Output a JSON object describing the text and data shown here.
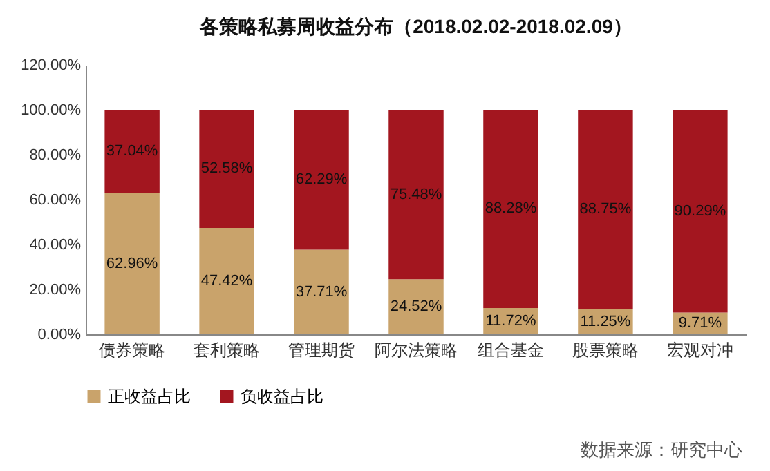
{
  "chart_data": {
    "type": "bar",
    "title": "各策略私募周收益分布（2018.02.02-2018.02.09）",
    "stacked": true,
    "categories": [
      "债券策略",
      "套利策略",
      "管理期货",
      "阿尔法策略",
      "组合基金",
      "股票策略",
      "宏观对冲"
    ],
    "series": [
      {
        "name": "正收益占比",
        "color": "#c9a36b",
        "values": [
          62.96,
          47.42,
          37.71,
          24.52,
          11.72,
          11.25,
          9.71
        ],
        "value_labels": [
          "62.96%",
          "47.42%",
          "37.71%",
          "24.52%",
          "11.72%",
          "11.25%",
          "9.71%"
        ]
      },
      {
        "name": "负收益占比",
        "color": "#a3161f",
        "values": [
          37.04,
          52.58,
          62.29,
          75.48,
          88.28,
          88.75,
          90.29
        ],
        "value_labels": [
          "37.04%",
          "52.58%",
          "62.29%",
          "75.48%",
          "88.28%",
          "88.75%",
          "90.29%"
        ]
      }
    ],
    "ylim": [
      0,
      120
    ],
    "yticks": [
      {
        "value": 0,
        "label": "0.00%"
      },
      {
        "value": 20,
        "label": "20.00%"
      },
      {
        "value": 40,
        "label": "40.00%"
      },
      {
        "value": 60,
        "label": "60.00%"
      },
      {
        "value": 80,
        "label": "80.00%"
      },
      {
        "value": 100,
        "label": "100.00%"
      },
      {
        "value": 120,
        "label": "120.00%"
      }
    ],
    "grid": false,
    "legend": "bottom",
    "annotations": [
      "数据来源：研究中心"
    ]
  }
}
